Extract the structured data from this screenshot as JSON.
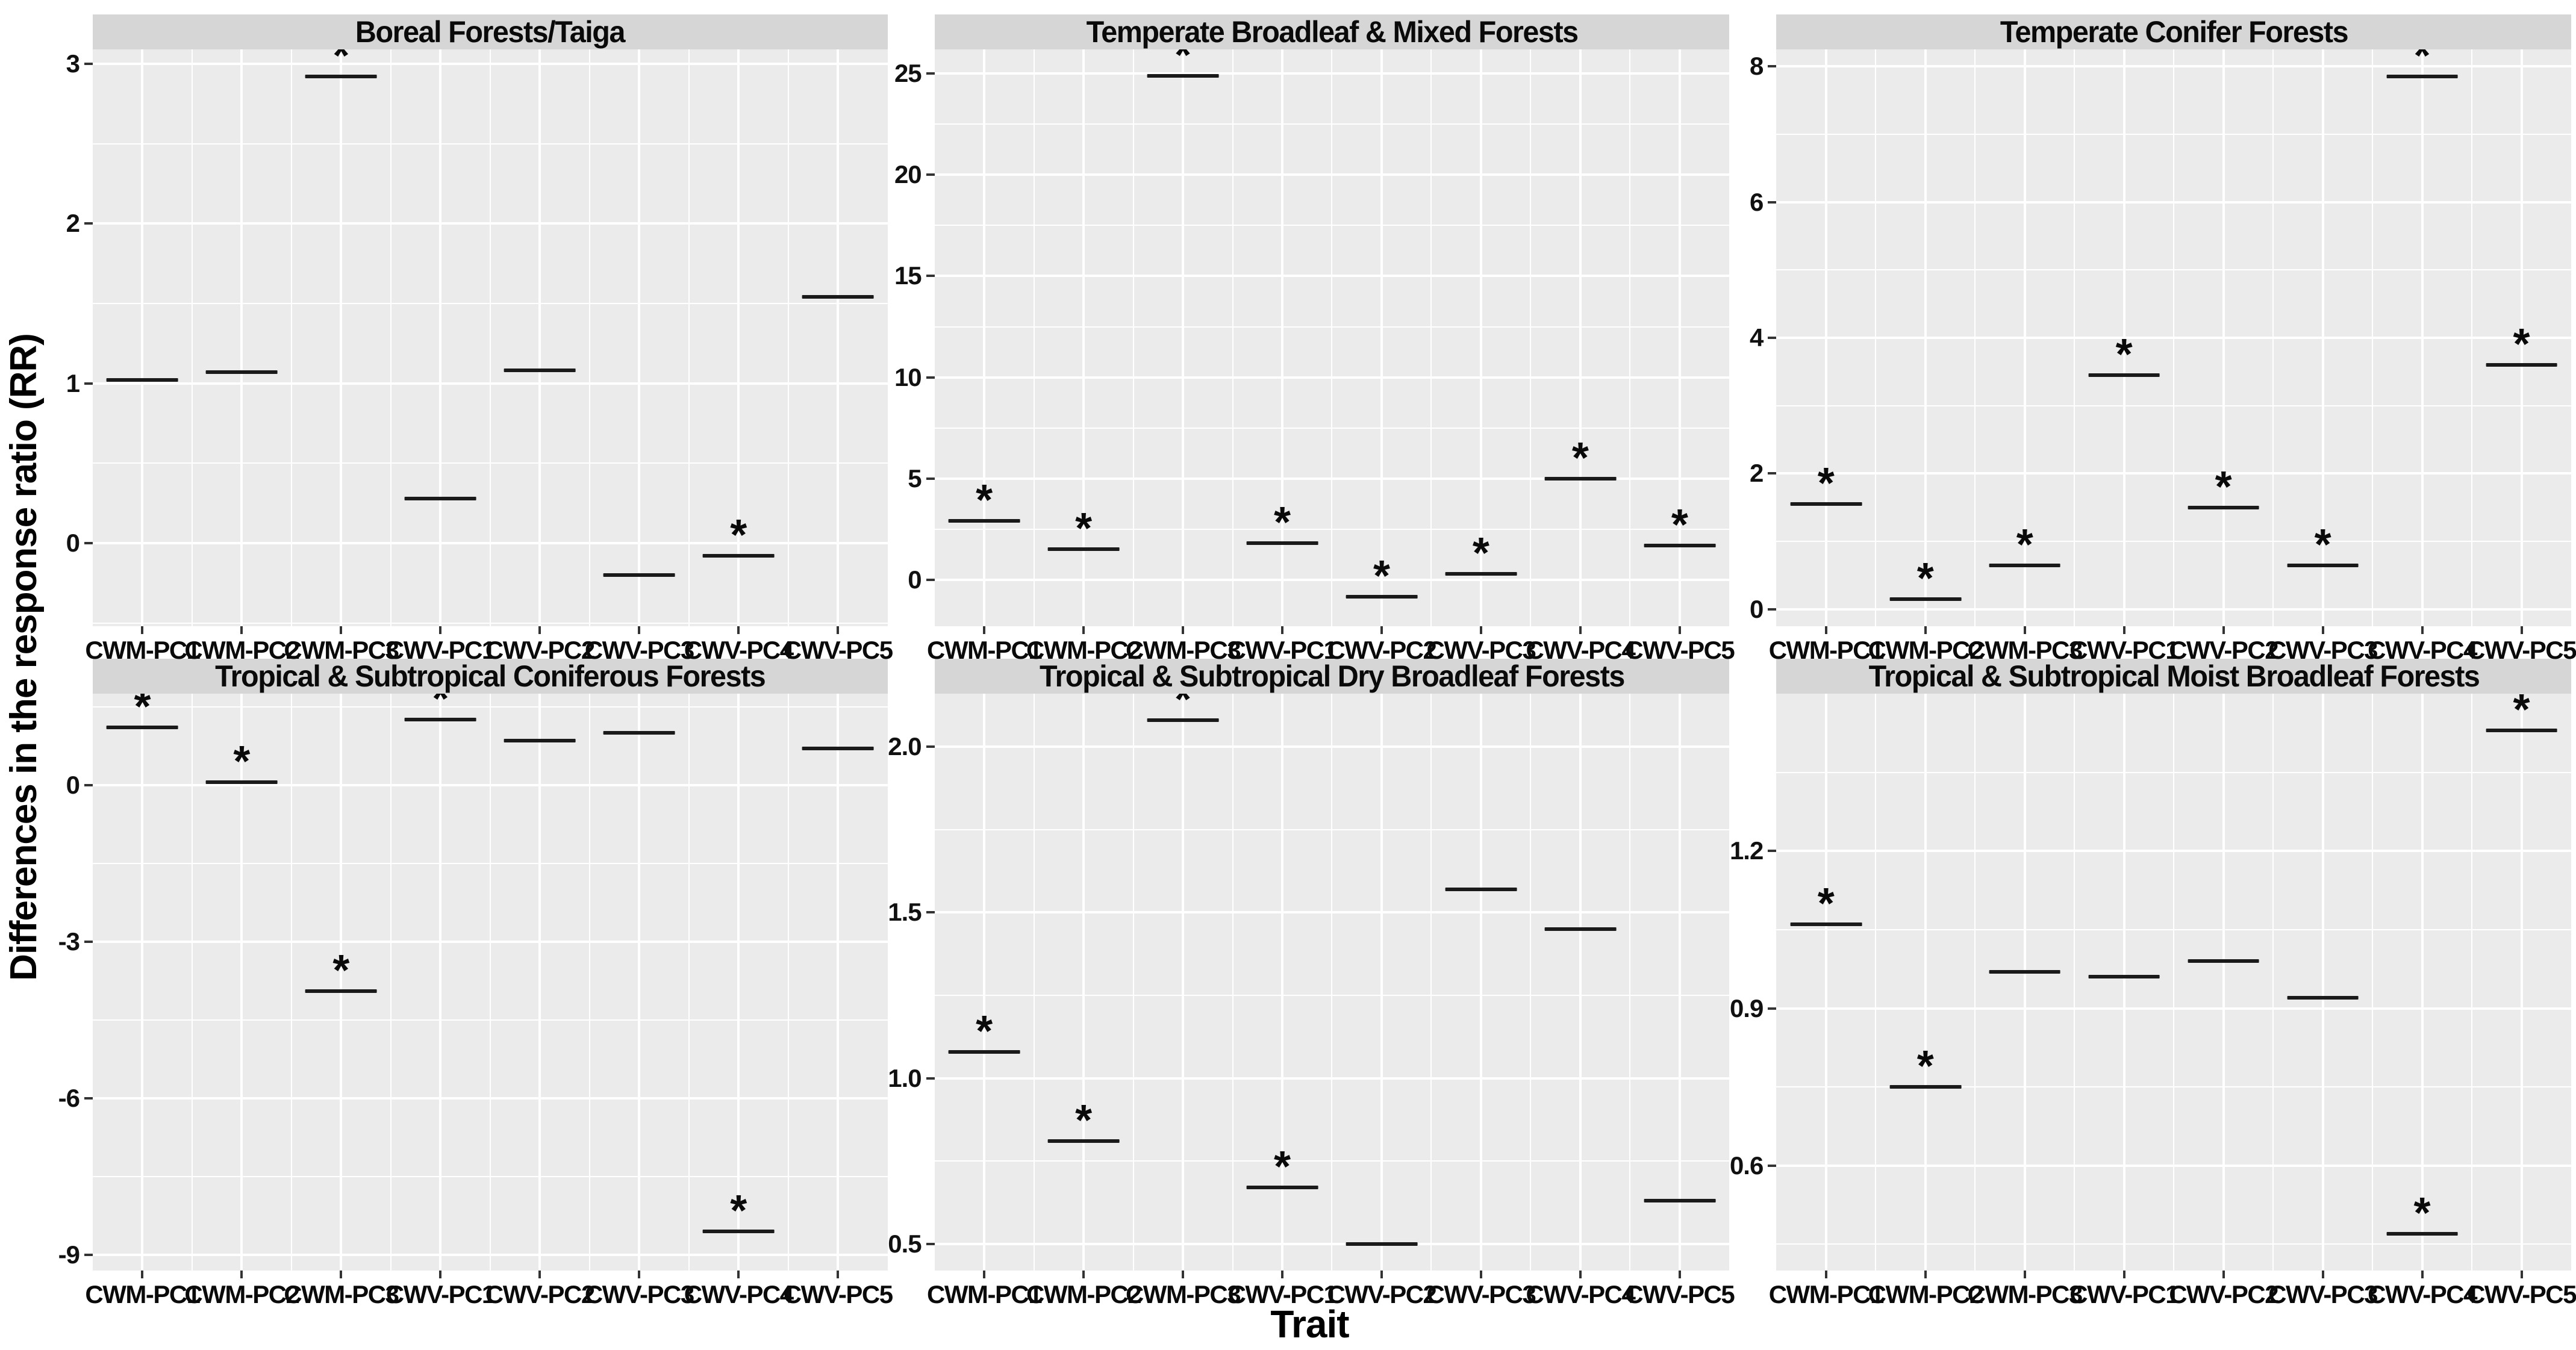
{
  "chart_data": {
    "type": "scatter",
    "marker": "horizontal-segment",
    "title": "",
    "xlabel": "Trait",
    "ylabel": "Differences in the response ratio (RR)",
    "significance_marker": "*",
    "categories": [
      "CWM-PC1",
      "CWM-PC2",
      "CWM-PC3",
      "CWV-PC1",
      "CWV-PC2",
      "CWV-PC3",
      "CWV-PC4",
      "CWV-PC5"
    ],
    "facets": [
      {
        "title": "Boreal Forests/Taiga",
        "ylim": [
          -0.52,
          3.09
        ],
        "major_ticks": [
          0,
          1,
          2,
          3
        ],
        "major_tick_labels": [
          "0",
          "1",
          "2",
          "3"
        ],
        "minor_ticks": [
          -0.5,
          0.5,
          1.5,
          2.5
        ],
        "values": [
          1.02,
          1.07,
          2.92,
          0.28,
          1.08,
          -0.2,
          -0.08,
          1.54
        ],
        "significant": [
          false,
          false,
          true,
          false,
          false,
          false,
          true,
          false
        ]
      },
      {
        "title": "Temperate Broadleaf & Mixed Forests",
        "ylim": [
          -2.3,
          26.2
        ],
        "major_ticks": [
          0,
          5,
          10,
          15,
          20,
          25
        ],
        "major_tick_labels": [
          "0",
          "5",
          "10",
          "15",
          "20",
          "25"
        ],
        "minor_ticks": [
          2.5,
          7.5,
          12.5,
          17.5,
          22.5
        ],
        "values": [
          2.9,
          1.5,
          24.9,
          1.8,
          -0.85,
          0.3,
          5.0,
          1.7
        ],
        "significant": [
          true,
          true,
          true,
          true,
          true,
          true,
          true,
          true
        ]
      },
      {
        "title": "Temperate Conifer Forests",
        "ylim": [
          -0.25,
          8.25
        ],
        "major_ticks": [
          0,
          2,
          4,
          6,
          8
        ],
        "major_tick_labels": [
          "0",
          "2",
          "4",
          "6",
          "8"
        ],
        "minor_ticks": [
          1,
          3,
          5,
          7
        ],
        "values": [
          1.55,
          0.15,
          0.65,
          3.45,
          1.5,
          0.65,
          7.85,
          3.6
        ],
        "significant": [
          true,
          true,
          true,
          true,
          true,
          true,
          true,
          true
        ]
      },
      {
        "title": "Tropical & Subtropical Coniferous Forests",
        "ylim": [
          -9.3,
          1.75
        ],
        "major_ticks": [
          0,
          -3,
          -6,
          -9
        ],
        "major_tick_labels": [
          "0",
          "-3",
          "-6",
          "-9"
        ],
        "minor_ticks": [
          1.5,
          -1.5,
          -4.5,
          -7.5
        ],
        "values": [
          1.1,
          0.05,
          -3.95,
          1.25,
          0.85,
          1.0,
          -8.55,
          0.7
        ],
        "significant": [
          true,
          true,
          true,
          true,
          false,
          false,
          true,
          false
        ]
      },
      {
        "title": "Tropical & Subtropical Dry Broadleaf Forests",
        "ylim": [
          0.42,
          2.16
        ],
        "major_ticks": [
          0.5,
          1.0,
          1.5,
          2.0
        ],
        "major_tick_labels": [
          "0.5",
          "1.0",
          "1.5",
          "2.0"
        ],
        "minor_ticks": [
          0.75,
          1.25,
          1.75
        ],
        "values": [
          1.08,
          0.81,
          2.08,
          0.67,
          0.5,
          1.57,
          1.45,
          0.63
        ],
        "significant": [
          true,
          true,
          true,
          true,
          false,
          false,
          false,
          false
        ]
      },
      {
        "title": "Tropical & Subtropical Moist Broadleaf Forests",
        "ylim": [
          0.4,
          1.5
        ],
        "major_ticks": [
          0.6,
          0.9,
          1.2
        ],
        "major_tick_labels": [
          "0.6",
          "0.9",
          "1.2"
        ],
        "minor_ticks": [
          0.45,
          0.75,
          1.05,
          1.35
        ],
        "values": [
          1.06,
          0.75,
          0.97,
          0.96,
          0.99,
          0.92,
          0.47,
          1.43
        ],
        "significant": [
          true,
          true,
          false,
          false,
          false,
          false,
          true,
          true
        ]
      }
    ],
    "layout": {
      "grid": "2x3",
      "legend": "none",
      "gridlines": true,
      "panel_bg": "#EBEBEB",
      "strip_bg": "#D6D6D6",
      "grid_color": "#FFFFFF",
      "line_color": "#1A1A1A",
      "text_color": "#0A0A0A"
    }
  }
}
